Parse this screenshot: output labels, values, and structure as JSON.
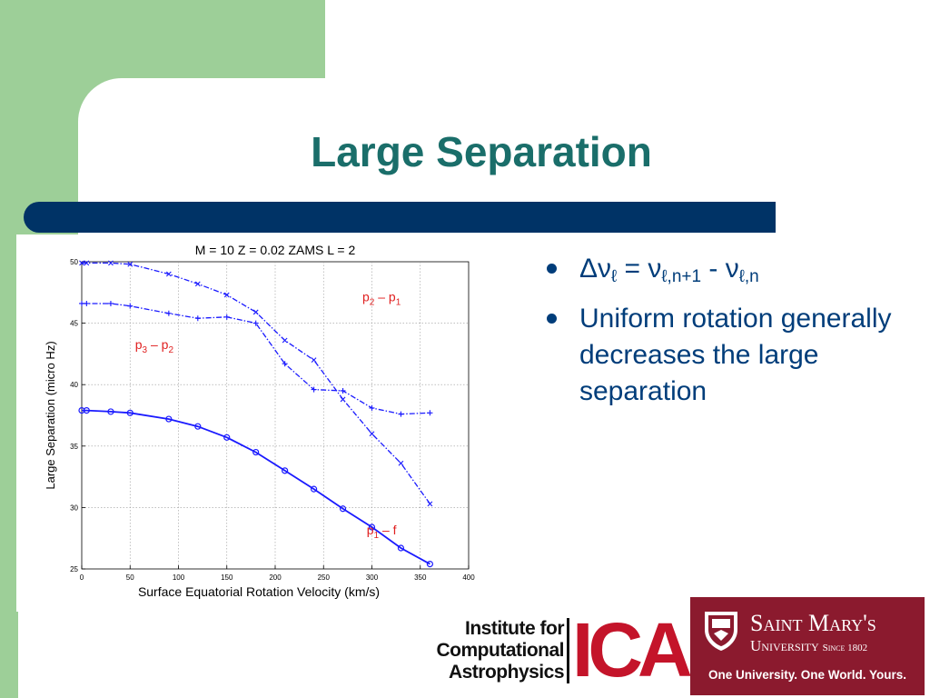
{
  "slide": {
    "title": "Large Separation",
    "colors": {
      "title": "#1a6e6a",
      "bar": "#003366",
      "green": "#9dcf98",
      "bullet_text": "#003d7a",
      "plot_series": "#1a1aff",
      "plot_labels": "#e02020"
    }
  },
  "bullets": {
    "items": [
      {
        "delta": "Δν",
        "nu_sub": "ℓ",
        "eq": " = ν",
        "sub1": "ℓ,n+1",
        "minus": " - ν",
        "sub2": "ℓ,n"
      },
      {
        "text": "Uniform rotation generally decreases the large separation"
      }
    ]
  },
  "chart_data": {
    "type": "line",
    "title": "M = 10  Z = 0.02  ZAMS  L = 2",
    "xlabel": "Surface Equatorial Rotation Velocity (km/s)",
    "ylabel": "Large Separation (micro Hz)",
    "xlim": [
      0,
      400
    ],
    "ylim": [
      25,
      50
    ],
    "xticks": [
      0,
      50,
      100,
      150,
      200,
      250,
      300,
      350,
      400
    ],
    "yticks": [
      25,
      30,
      35,
      40,
      45,
      50
    ],
    "grid": true,
    "series": [
      {
        "name": "p1 – f",
        "style": "solid",
        "marker": "circle",
        "x": [
          0,
          5,
          30,
          50,
          90,
          120,
          150,
          180,
          210,
          240,
          270,
          300,
          330,
          360
        ],
        "y": [
          37.9,
          37.9,
          37.8,
          37.7,
          37.2,
          36.6,
          35.7,
          34.5,
          33.0,
          31.5,
          29.9,
          28.4,
          26.7,
          25.4
        ]
      },
      {
        "name": "p3 – p2",
        "style": "dashdot",
        "marker": "plus",
        "x": [
          0,
          5,
          30,
          50,
          90,
          120,
          150,
          180,
          210,
          240,
          270,
          300,
          330,
          360
        ],
        "y": [
          46.6,
          46.6,
          46.6,
          46.4,
          45.8,
          45.4,
          45.5,
          45.0,
          41.7,
          39.6,
          39.5,
          38.1,
          37.6,
          37.7
        ]
      },
      {
        "name": "p2 – p1",
        "style": "dashdot",
        "marker": "x",
        "x": [
          0,
          5,
          30,
          50,
          90,
          120,
          150,
          180,
          210,
          240,
          270,
          300,
          330,
          360
        ],
        "y": [
          49.9,
          49.9,
          49.9,
          49.8,
          49.0,
          48.2,
          47.3,
          45.9,
          43.6,
          42.0,
          38.8,
          36.0,
          33.6,
          30.3
        ]
      }
    ],
    "annotations": [
      {
        "main": "p",
        "sub1": "2",
        "mid": " – p",
        "sub2": "1",
        "x": 310,
        "y": 46.8
      },
      {
        "main": "p",
        "sub1": "3",
        "mid": " – p",
        "sub2": "2",
        "x": 75,
        "y": 42.9
      },
      {
        "main": "p",
        "sub1": "1",
        "mid": " – f",
        "sub2": "",
        "x": 310,
        "y": 27.8
      }
    ]
  },
  "logos": {
    "ica": {
      "line1": "Institute for",
      "line2": "Computational",
      "line3": "Astrophysics",
      "mark": "ICA"
    },
    "smu": {
      "name": "Saint Mary's",
      "uni": "University",
      "since": "Since 1802",
      "tagline": "One University. One World. Yours.",
      "crest_icon": "crest-icon"
    }
  }
}
